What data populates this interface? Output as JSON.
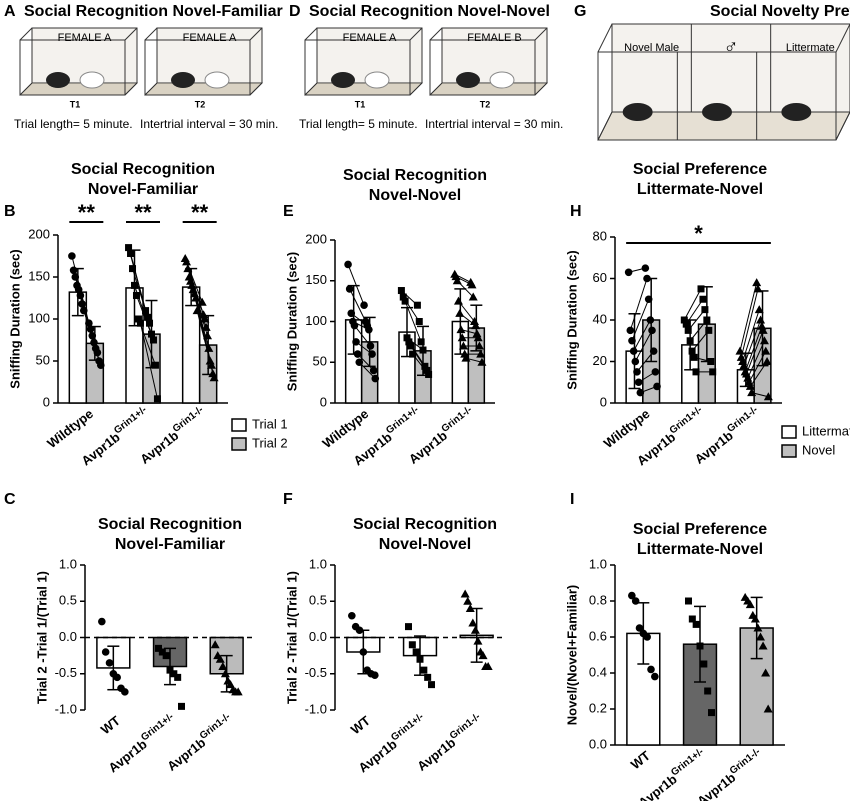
{
  "diagrams": [
    {
      "letter": "A",
      "title": "Social Recognition Novel-Familiar",
      "chambers": [
        {
          "label": "FEMALE A",
          "trial": "T1"
        },
        {
          "label": "FEMALE A",
          "trial": "T2"
        }
      ],
      "notes": [
        "Trial length= 5 minute.",
        "Intertrial interval = 30 min."
      ]
    },
    {
      "letter": "D",
      "title": "Social Recognition Novel-Novel",
      "chambers": [
        {
          "label": "FEMALE A",
          "trial": "T1"
        },
        {
          "label": "FEMALE B",
          "trial": "T2"
        }
      ],
      "notes": [
        "Trial length= 5 minute.",
        "Intertrial interval = 30 min."
      ]
    },
    {
      "letter": "G",
      "title": "Social Novelty Preference",
      "chambers": [
        {
          "label": "Novel Male"
        },
        {
          "label": "♂"
        },
        {
          "label": "Littermate"
        }
      ]
    }
  ],
  "chart_data": [
    {
      "type": "bar",
      "panel": "B",
      "title": [
        "Social Recognition",
        "Novel-Familiar"
      ],
      "y_label": "Sniffing Duration (sec)",
      "categories": [
        "Wildtype",
        "Avpr1b",
        "Avpr1b"
      ],
      "category_superscripts": [
        null,
        "Grin1+/-",
        "Grin1-/-"
      ],
      "ylim": [
        0,
        200
      ],
      "yticks": [
        0,
        50,
        100,
        150,
        200
      ],
      "point_markers": [
        "circle",
        "square",
        "triangle"
      ],
      "legend": true,
      "annotations": [
        {
          "text": "**",
          "category": 0
        },
        {
          "text": "**",
          "category": 1
        },
        {
          "text": "**",
          "category": 2
        }
      ],
      "series": [
        {
          "name": "Trial 1",
          "color": "#ffffff",
          "values": [
            132,
            137,
            138
          ],
          "errors": [
            28,
            45,
            22
          ],
          "points": [
            [
              175,
              158,
              150,
              140,
              135,
              128,
              118,
              110
            ],
            [
              185,
              178,
              160,
              140,
              128,
              100,
              95
            ],
            [
              172,
              168,
              160,
              150,
              145,
              140,
              135,
              130,
              125,
              110
            ]
          ]
        },
        {
          "name": "Trial 2",
          "color": "#bfbfbf",
          "values": [
            71,
            82,
            69
          ],
          "errors": [
            20,
            40,
            35
          ],
          "points": [
            [
              95,
              88,
              80,
              72,
              65,
              60,
              50,
              45
            ],
            [
              110,
              102,
              95,
              82,
              75,
              45,
              5
            ],
            [
              120,
              105,
              100,
              90,
              80,
              65,
              50,
              45,
              35,
              30
            ]
          ]
        }
      ]
    },
    {
      "type": "bar",
      "panel": "E",
      "title": [
        "Social Recognition",
        "Novel-Novel"
      ],
      "y_label": "Sniffing Duration (sec)",
      "categories": [
        "Wildtype",
        "Avpr1b",
        "Avpr1b"
      ],
      "category_superscripts": [
        null,
        "Grin1+/-",
        "Grin1-/-"
      ],
      "ylim": [
        0,
        200
      ],
      "yticks": [
        0,
        50,
        100,
        150,
        200
      ],
      "point_markers": [
        "circle",
        "square",
        "triangle"
      ],
      "series": [
        {
          "name": "Trial 1",
          "color": "#ffffff",
          "values": [
            102,
            87,
            100
          ],
          "errors": [
            42,
            30,
            40
          ],
          "points": [
            [
              170,
              140,
              110,
              100,
              95,
              75,
              60,
              50
            ],
            [
              138,
              130,
              125,
              80,
              75,
              70,
              60
            ],
            [
              158,
              155,
              150,
              125,
              110,
              90,
              80,
              70,
              60,
              55
            ]
          ]
        },
        {
          "name": "Trial 2",
          "color": "#bfbfbf",
          "values": [
            75,
            64,
            92
          ],
          "errors": [
            30,
            30,
            28
          ],
          "points": [
            [
              120,
              100,
              95,
              90,
              70,
              60,
              40,
              30
            ],
            [
              120,
              100,
              75,
              65,
              45,
              40,
              35
            ],
            [
              148,
              145,
              130,
              100,
              95,
              85,
              80,
              70,
              60,
              50
            ]
          ]
        }
      ]
    },
    {
      "type": "bar",
      "panel": "H",
      "title": [
        "Social Preference",
        "Littermate-Novel"
      ],
      "y_label": "Sniffing Duration (sec)",
      "categories": [
        "Wildtype",
        "Avpr1b",
        "Avpr1b"
      ],
      "category_superscripts": [
        null,
        "Grin1+/-",
        "Grin1-/-"
      ],
      "ylim": [
        0,
        80
      ],
      "yticks": [
        0,
        20,
        40,
        60,
        80
      ],
      "point_markers": [
        "circle",
        "square",
        "triangle"
      ],
      "legend": true,
      "annotations": [
        {
          "text": "*",
          "span": [
            0,
            2
          ]
        }
      ],
      "series": [
        {
          "name": "Littermate",
          "color": "#ffffff",
          "values": [
            25,
            28,
            16
          ],
          "errors": [
            18,
            12,
            8
          ],
          "points": [
            [
              63,
              35,
              30,
              25,
              20,
              15,
              10,
              5
            ],
            [
              40,
              38,
              35,
              30,
              25,
              22,
              15
            ],
            [
              25,
              22,
              20,
              18,
              15,
              14,
              12,
              10,
              8,
              5
            ]
          ]
        },
        {
          "name": "Novel",
          "color": "#bfbfbf",
          "values": [
            40,
            38,
            36
          ],
          "errors": [
            20,
            18,
            18
          ],
          "points": [
            [
              65,
              60,
              50,
              40,
              35,
              25,
              15,
              8
            ],
            [
              55,
              50,
              45,
              40,
              35,
              20,
              15
            ],
            [
              58,
              55,
              45,
              40,
              37,
              35,
              30,
              25,
              20,
              3
            ]
          ]
        }
      ]
    },
    {
      "type": "bar",
      "panel": "C",
      "title": [
        "Social Recognition",
        "Novel-Familiar"
      ],
      "y_label": "Trial 2 -Trial 1/(Trial 1)",
      "categories": [
        "WT",
        "Avpr1b",
        "Avpr1b"
      ],
      "category_superscripts": [
        null,
        "Grin1+/-",
        "Grin1-/-"
      ],
      "ylim": [
        -1,
        1
      ],
      "yticks": [
        {
          "value": -1,
          "label": "-1.0"
        },
        {
          "value": -0.5,
          "label": "-0.5"
        },
        {
          "value": 0,
          "label": "0.0"
        },
        {
          "value": 0.5,
          "label": "0.5"
        },
        {
          "value": 1,
          "label": "1.0"
        }
      ],
      "point_markers": [
        "circle",
        "square",
        "triangle"
      ],
      "zero_line": true,
      "colors": [
        "#ffffff",
        "#666666",
        "#bbbbbb"
      ],
      "series": [
        {
          "values": [
            -0.42,
            -0.4,
            -0.5
          ],
          "errors": [
            0.3,
            0.25,
            0.25
          ],
          "points": [
            [
              0.22,
              -0.2,
              -0.35,
              -0.5,
              -0.55,
              -0.7,
              -0.75
            ],
            [
              -0.15,
              -0.2,
              -0.25,
              -0.45,
              -0.5,
              -0.55,
              -0.95
            ],
            [
              -0.1,
              -0.25,
              -0.3,
              -0.4,
              -0.5,
              -0.6,
              -0.65,
              -0.72,
              -0.75,
              -0.75
            ]
          ]
        }
      ]
    },
    {
      "type": "bar",
      "panel": "F",
      "title": [
        "Social Recognition",
        "Novel-Novel"
      ],
      "y_label": "Trial 2 -Trial 1/(Trial 1)",
      "categories": [
        "WT",
        "Avpr1b",
        "Avpr1b"
      ],
      "category_superscripts": [
        null,
        "Grin1+/-",
        "Grin1-/-"
      ],
      "ylim": [
        -1,
        1
      ],
      "yticks": [
        {
          "value": -1,
          "label": "-1.0"
        },
        {
          "value": -0.5,
          "label": "-0.5"
        },
        {
          "value": 0,
          "label": "0.0"
        },
        {
          "value": 0.5,
          "label": "0.5"
        },
        {
          "value": 1,
          "label": "1.0"
        }
      ],
      "point_markers": [
        "circle",
        "square",
        "triangle"
      ],
      "zero_line": true,
      "colors": [
        "#ffffff",
        "#ffffff",
        "#ffffff"
      ],
      "series": [
        {
          "values": [
            -0.2,
            -0.25,
            0.03
          ],
          "errors": [
            0.3,
            0.27,
            0.37
          ],
          "points": [
            [
              0.3,
              0.15,
              0.1,
              -0.2,
              -0.45,
              -0.5,
              -0.52
            ],
            [
              0.15,
              -0.1,
              -0.2,
              -0.3,
              -0.45,
              -0.55,
              -0.65
            ],
            [
              0.6,
              0.5,
              0.4,
              0.2,
              0.1,
              -0.05,
              -0.2,
              -0.25,
              -0.4,
              -0.4
            ]
          ]
        }
      ]
    },
    {
      "type": "bar",
      "panel": "I",
      "title": [
        "Social Preference",
        "Littermate-Novel"
      ],
      "y_label": "Novel/(Novel+Familiar)",
      "categories": [
        "WT",
        "Avpr1b",
        "Avpr1b"
      ],
      "category_superscripts": [
        null,
        "Grin1+/-",
        "Grin1-/-"
      ],
      "ylim": [
        0,
        1
      ],
      "yticks": [
        {
          "value": 0,
          "label": "0.0"
        },
        0.2,
        0.4,
        0.6,
        0.8,
        {
          "value": 1,
          "label": "1.0"
        }
      ],
      "point_markers": [
        "circle",
        "square",
        "triangle"
      ],
      "colors": [
        "#ffffff",
        "#666666",
        "#bbbbbb"
      ],
      "series": [
        {
          "values": [
            0.62,
            0.56,
            0.65
          ],
          "errors": [
            0.17,
            0.21,
            0.17
          ],
          "points": [
            [
              0.83,
              0.8,
              0.65,
              0.62,
              0.6,
              0.42,
              0.38
            ],
            [
              0.8,
              0.7,
              0.67,
              0.55,
              0.45,
              0.3,
              0.18
            ],
            [
              0.82,
              0.8,
              0.78,
              0.72,
              0.7,
              0.65,
              0.6,
              0.55,
              0.4,
              0.2
            ]
          ]
        }
      ]
    }
  ]
}
